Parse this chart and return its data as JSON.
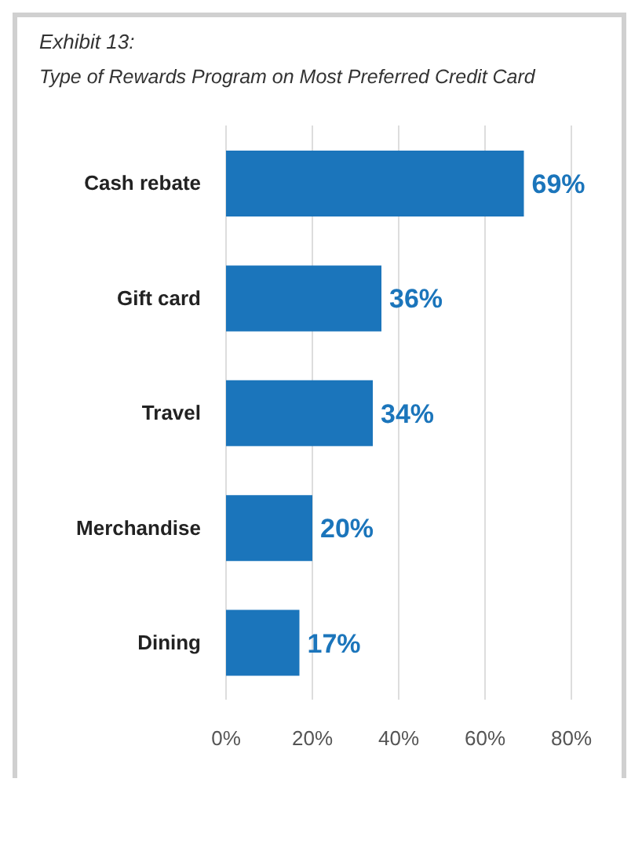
{
  "chart_data": {
    "type": "bar",
    "orientation": "horizontal",
    "title": "Exhibit 13:",
    "subtitle": "Type of Rewards Program on Most Preferred Credit Card",
    "categories": [
      "Cash rebate",
      "Gift card",
      "Travel",
      "Merchandise",
      "Dining"
    ],
    "values": [
      69,
      36,
      34,
      20,
      17
    ],
    "value_labels": [
      "69%",
      "36%",
      "34%",
      "20%",
      "17%"
    ],
    "color": "#1b75bb",
    "xlim": [
      0,
      80
    ],
    "xticks": [
      {
        "value": 0,
        "label": "0%"
      },
      {
        "value": 20,
        "label": "20%"
      },
      {
        "value": 40,
        "label": "40%"
      },
      {
        "value": 60,
        "label": "60%"
      },
      {
        "value": 80,
        "label": "80%"
      }
    ],
    "grid": "x"
  }
}
